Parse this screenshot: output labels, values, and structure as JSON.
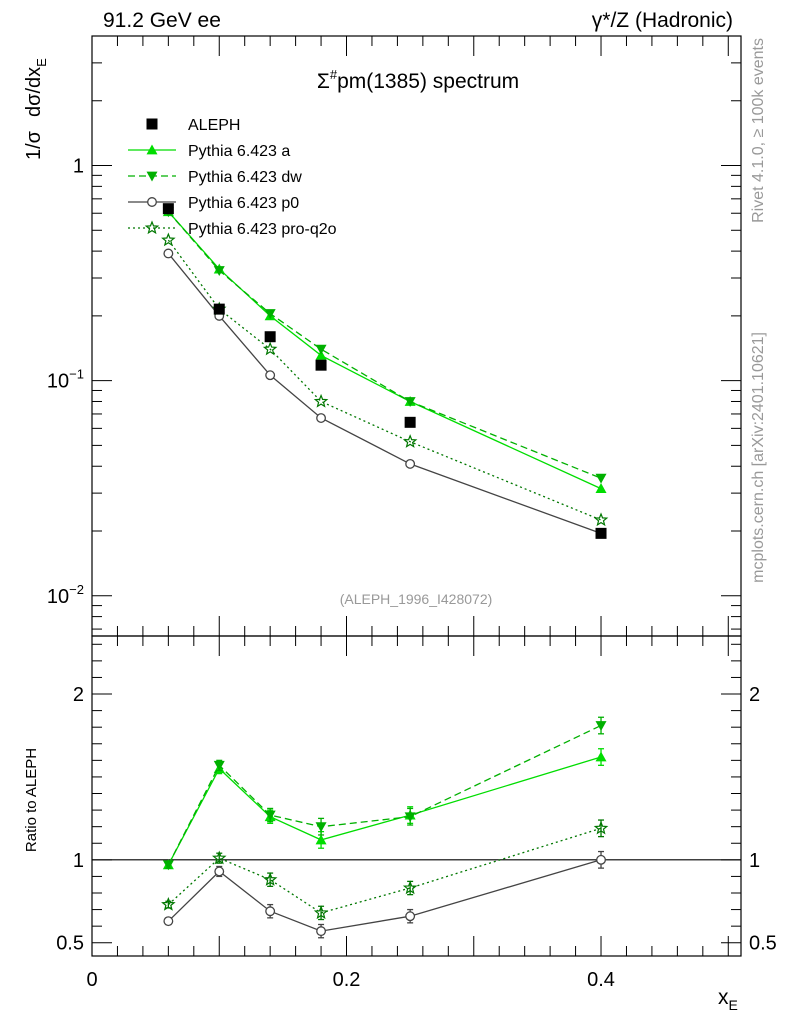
{
  "header": {
    "left": "91.2 GeV ee",
    "right": "γ*/Z (Hadronic)",
    "side_top": "Rivet 4.1.0, ≥ 100k events",
    "side_bottom": "mcplots.cern.ch [arXiv:2401.10621]"
  },
  "chart_data": {
    "type": "line",
    "title": "Σ#pm(1385) spectrum",
    "title_parts": {
      "pre": "Σ",
      "sup": "#",
      "post": "pm(1385) spectrum"
    },
    "analysis_label": "(ALEPH_1996_I428072)",
    "ylabel_main": "1/σ  dσ/dx_E",
    "ylabel_ratio": "Ratio to ALEPH",
    "xlabel": "x_E",
    "xlim": [
      0,
      0.51
    ],
    "ylim_main": [
      0.0065,
      4.0
    ],
    "ylim_ratio": [
      0.42,
      2.35
    ],
    "yscale_main": "log",
    "x_ticks": [
      {
        "value": 0,
        "label": "0"
      },
      {
        "value": 0.2,
        "label": "0.2"
      },
      {
        "value": 0.4,
        "label": "0.4"
      }
    ],
    "y_ticks_main": [
      {
        "value": 1,
        "label": "1",
        "exp": ""
      },
      {
        "value": 0.1,
        "label": "10",
        "exp": "−1"
      },
      {
        "value": 0.01,
        "label": "10",
        "exp": "−2"
      }
    ],
    "y_ticks_ratio": [
      {
        "value": 0.5,
        "label": "0.5"
      },
      {
        "value": 1,
        "label": "1"
      },
      {
        "value": 2,
        "label": "2"
      }
    ],
    "legend_position": "top-left",
    "x": [
      0.06,
      0.1,
      0.14,
      0.18,
      0.25,
      0.4
    ],
    "data": {
      "name": "ALEPH",
      "values": [
        0.63,
        0.215,
        0.16,
        0.118,
        0.064,
        0.0195
      ]
    },
    "series": [
      {
        "name": "Pythia 6.423 a",
        "color": "#00dd00",
        "dash": "",
        "marker": "triangle-up",
        "values": [
          0.61,
          0.33,
          0.2,
          0.131,
          0.08,
          0.0315
        ],
        "ratio": [
          0.97,
          1.55,
          1.26,
          1.12,
          1.27,
          1.62
        ],
        "ratio_err": [
          0.02,
          0.03,
          0.04,
          0.05,
          0.05,
          0.05
        ]
      },
      {
        "name": "Pythia 6.423 dw",
        "color": "#00b000",
        "dash": "7,4",
        "marker": "triangle-down",
        "values": [
          0.61,
          0.325,
          0.205,
          0.14,
          0.08,
          0.0352
        ],
        "ratio": [
          0.97,
          1.57,
          1.27,
          1.2,
          1.26,
          1.81
        ],
        "ratio_err": [
          0.02,
          0.03,
          0.04,
          0.05,
          0.05,
          0.05
        ]
      },
      {
        "name": "Pythia 6.423 p0",
        "color": "#444444",
        "dash": "",
        "marker": "circle-open",
        "values": [
          0.39,
          0.2,
          0.106,
          0.067,
          0.041,
          0.0195
        ],
        "ratio": [
          0.63,
          0.93,
          0.69,
          0.57,
          0.66,
          1.0
        ],
        "ratio_err": [
          0.02,
          0.03,
          0.04,
          0.04,
          0.04,
          0.05
        ]
      },
      {
        "name": "Pythia 6.423 pro-q2o",
        "color": "#007700",
        "dash": "2,3",
        "marker": "star-open",
        "values": [
          0.45,
          0.215,
          0.14,
          0.08,
          0.052,
          0.0225
        ],
        "ratio": [
          0.73,
          1.01,
          0.88,
          0.68,
          0.83,
          1.19
        ],
        "ratio_err": [
          0.02,
          0.03,
          0.04,
          0.04,
          0.04,
          0.05
        ]
      }
    ]
  }
}
